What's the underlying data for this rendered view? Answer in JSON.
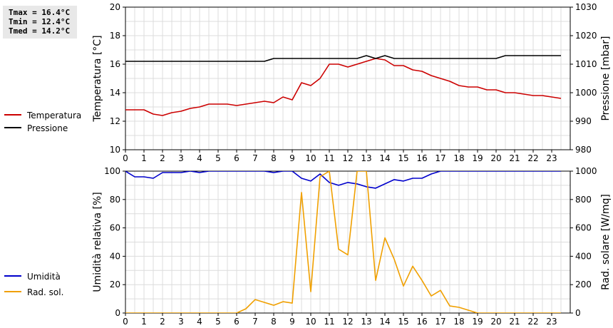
{
  "stats": {
    "tmax": "Tmax = 16.4°C",
    "tmin": "Tmin = 12.4°C",
    "tmed": "Tmed = 14.2°C"
  },
  "chart_data": [
    {
      "type": "line",
      "ylabel": "Temperatura [°C]",
      "y2label": "Pressione [mbar]",
      "xlim": [
        0,
        24
      ],
      "ylim": [
        10,
        20
      ],
      "y2lim": [
        980,
        1030
      ],
      "xticks": [
        "0",
        "1",
        "2",
        "3",
        "4",
        "5",
        "6",
        "7",
        "8",
        "9",
        "10",
        "11",
        "12",
        "13",
        "14",
        "15",
        "16",
        "17",
        "18",
        "19",
        "20",
        "21",
        "22",
        "23"
      ],
      "yticks": [
        "10",
        "12",
        "14",
        "16",
        "18",
        "20"
      ],
      "y2ticks": [
        "980",
        "990",
        "1000",
        "1010",
        "1020",
        "1030"
      ],
      "grid": true,
      "legend_position": "left",
      "series": [
        {
          "name": "Temperatura",
          "axis": "left",
          "color": "#cc0000",
          "x": [
            0,
            1,
            1.5,
            2,
            2.5,
            3,
            3.5,
            4,
            4.5,
            5,
            5.5,
            6,
            6.5,
            7,
            7.5,
            8,
            8.5,
            9,
            9.5,
            10,
            10.5,
            11,
            11.5,
            12,
            12.5,
            13,
            13.5,
            14,
            14.5,
            15,
            15.5,
            16,
            16.5,
            17,
            17.5,
            18,
            18.5,
            19,
            19.5,
            20,
            20.5,
            21,
            21.5,
            22,
            22.5,
            23,
            23.5
          ],
          "values": [
            12.8,
            12.8,
            12.5,
            12.4,
            12.6,
            12.7,
            12.9,
            13.0,
            13.2,
            13.2,
            13.2,
            13.1,
            13.2,
            13.3,
            13.4,
            13.3,
            13.7,
            13.5,
            14.7,
            14.5,
            15.0,
            16.0,
            16.0,
            15.8,
            16.0,
            16.2,
            16.4,
            16.3,
            15.9,
            15.9,
            15.6,
            15.5,
            15.2,
            15.0,
            14.8,
            14.5,
            14.4,
            14.4,
            14.2,
            14.2,
            14.0,
            14.0,
            13.9,
            13.8,
            13.8,
            13.7,
            13.6
          ]
        },
        {
          "name": "Pressione",
          "axis": "right",
          "color": "#000000",
          "x": [
            0,
            7.5,
            8,
            12.5,
            13,
            13.5,
            14,
            14.5,
            20,
            20.5,
            23.5
          ],
          "values": [
            1011,
            1011,
            1012,
            1012,
            1013,
            1012,
            1013,
            1012,
            1012,
            1013,
            1013
          ]
        }
      ]
    },
    {
      "type": "line",
      "ylabel": "Umidità relativa [%]",
      "y2label": "Rad. solare [W/mq]",
      "xlim": [
        0,
        24
      ],
      "ylim": [
        0,
        100
      ],
      "y2lim": [
        0,
        1000
      ],
      "xticks": [
        "0",
        "1",
        "2",
        "3",
        "4",
        "5",
        "6",
        "7",
        "8",
        "9",
        "10",
        "11",
        "12",
        "13",
        "14",
        "15",
        "16",
        "17",
        "18",
        "19",
        "20",
        "21",
        "22",
        "23"
      ],
      "yticks": [
        "0",
        "20",
        "40",
        "60",
        "80",
        "100"
      ],
      "y2ticks": [
        "0",
        "200",
        "400",
        "600",
        "800",
        "1000"
      ],
      "grid": true,
      "legend_position": "left",
      "series": [
        {
          "name": "Umidità",
          "axis": "left",
          "color": "#0000cc",
          "x": [
            0,
            0.5,
            1,
            1.5,
            2,
            2.5,
            3,
            3.5,
            4,
            4.5,
            5,
            7.5,
            8,
            8.5,
            9,
            9.5,
            10,
            10.5,
            11,
            11.5,
            12,
            12.5,
            13,
            13.5,
            14,
            14.5,
            15,
            15.5,
            16,
            16.5,
            17,
            23.5
          ],
          "values": [
            100,
            96,
            96,
            95,
            99,
            99,
            99,
            100,
            99,
            100,
            100,
            100,
            99,
            100,
            100,
            95,
            93,
            98,
            92,
            90,
            92,
            91,
            89,
            88,
            91,
            94,
            93,
            95,
            95,
            98,
            100,
            100
          ]
        },
        {
          "name": "Rad. sol.",
          "axis": "right",
          "color": "#f0a000",
          "x": [
            0,
            6,
            6.5,
            7,
            7.5,
            8,
            8.5,
            9,
            9.5,
            10,
            10.5,
            11,
            11.5,
            12,
            12.5,
            13,
            13.5,
            14,
            14.5,
            15,
            15.5,
            16,
            16.5,
            17,
            17.5,
            18,
            18.5,
            19,
            23.5
          ],
          "values": [
            0,
            0,
            30,
            95,
            75,
            55,
            80,
            70,
            850,
            150,
            960,
            1000,
            450,
            410,
            1000,
            1000,
            230,
            530,
            380,
            190,
            330,
            230,
            120,
            160,
            50,
            40,
            20,
            0,
            0
          ]
        }
      ]
    }
  ]
}
